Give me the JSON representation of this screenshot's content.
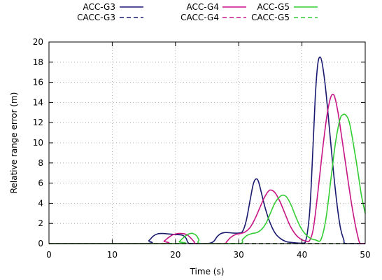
{
  "chart_data": {
    "type": "line",
    "xlabel": "Time (s)",
    "ylabel": "Relative range error (m)",
    "xlim": [
      0,
      50
    ],
    "ylim": [
      0,
      20
    ],
    "xticks": [
      0,
      10,
      20,
      30,
      40,
      50
    ],
    "yticks": [
      0,
      2,
      4,
      6,
      8,
      10,
      12,
      14,
      16,
      18,
      20
    ],
    "grid": true,
    "legend_position": "top",
    "series": [
      {
        "name": "ACC-G3",
        "color": "#191970",
        "dash": "solid",
        "x": [
          0,
          15,
          15.8,
          16.5,
          17.2,
          18,
          19,
          20,
          21,
          21.6,
          22,
          22.5,
          25,
          26,
          26.6,
          27.2,
          28,
          29,
          30,
          30.6,
          31.2,
          31.8,
          32.3,
          32.7,
          33.1,
          33.6,
          34.2,
          35,
          35.8,
          36.6,
          37.5,
          38.5,
          39.5,
          40.5,
          41.2,
          41.7,
          42.1,
          42.5,
          42.9,
          43.3,
          43.8,
          44.4,
          45,
          45.6,
          46.1,
          46.6,
          47,
          50
        ],
        "y": [
          0,
          0,
          0.3,
          0.75,
          0.97,
          1.0,
          0.95,
          0.9,
          0.85,
          0.6,
          0.1,
          0,
          0,
          0.2,
          0.7,
          1.0,
          1.1,
          1.05,
          1.05,
          1.2,
          2.3,
          4.3,
          5.9,
          6.4,
          6.2,
          5.0,
          3.5,
          2.0,
          1.0,
          0.5,
          0.2,
          0.1,
          0.05,
          0.1,
          3.0,
          9.0,
          14.5,
          17.8,
          18.5,
          17.5,
          15.0,
          11.0,
          7.0,
          3.6,
          1.5,
          0.4,
          0,
          0
        ]
      },
      {
        "name": "ACC-G4",
        "color": "#C71585",
        "dash": "solid",
        "x": [
          0,
          17.5,
          18.2,
          18.8,
          19.5,
          20,
          20.5,
          21,
          21.5,
          22,
          22.5,
          23,
          23.3,
          27.5,
          28.1,
          28.7,
          29.5,
          30.3,
          31,
          31.8,
          32.6,
          33.3,
          34,
          34.7,
          35.2,
          35.8,
          36.5,
          37.3,
          38.1,
          39,
          39.8,
          40.6,
          41.2,
          41.8,
          42.5,
          43.2,
          43.9,
          44.4,
          44.8,
          45.2,
          45.7,
          46.3,
          47,
          47.7,
          48.3,
          48.8,
          49.2,
          50
        ],
        "y": [
          0,
          0,
          0.25,
          0.55,
          0.85,
          0.95,
          1.0,
          1.0,
          0.95,
          0.8,
          0.5,
          0.15,
          0,
          0,
          0.2,
          0.6,
          0.9,
          1.0,
          1.15,
          1.6,
          2.5,
          3.5,
          4.5,
          5.2,
          5.3,
          5.0,
          4.2,
          3.0,
          1.8,
          0.9,
          0.45,
          0.25,
          0.3,
          1.5,
          5.0,
          9.0,
          12.5,
          14.2,
          14.8,
          14.5,
          13.0,
          10.5,
          7.5,
          4.5,
          2.3,
          0.8,
          0,
          0
        ]
      },
      {
        "name": "ACC-G5",
        "color": "#32CD32",
        "dash": "solid",
        "x": [
          0,
          20,
          20.6,
          21.2,
          21.8,
          22.3,
          22.8,
          23.3,
          23.7,
          24.1,
          30,
          30.6,
          31.3,
          32.1,
          32.9,
          33.6,
          34.3,
          35,
          35.7,
          36.4,
          37,
          37.6,
          38.3,
          39,
          39.8,
          40.6,
          41.4,
          42.2,
          43,
          43.8,
          44.6,
          45.3,
          46,
          46.5,
          47,
          47.5,
          48.1,
          48.8,
          49.4,
          50
        ],
        "y": [
          0,
          0,
          0.2,
          0.55,
          0.85,
          1.0,
          1.0,
          0.8,
          0.4,
          0,
          0,
          0.4,
          0.8,
          1.0,
          1.1,
          1.4,
          2.0,
          3.0,
          4.0,
          4.6,
          4.8,
          4.6,
          3.8,
          2.7,
          1.6,
          0.9,
          0.5,
          0.35,
          0.4,
          2.5,
          6.5,
          10.0,
          12.3,
          12.8,
          12.7,
          12.0,
          10.0,
          7.3,
          4.8,
          3.0
        ]
      },
      {
        "name": "CACC-G3",
        "color": "#191970",
        "dash": "dashed",
        "x": [
          0,
          50
        ],
        "y": [
          0,
          0
        ]
      },
      {
        "name": "CACC-G4",
        "color": "#C71585",
        "dash": "dashed",
        "x": [
          0,
          50
        ],
        "y": [
          0,
          0
        ]
      },
      {
        "name": "CACC-G5",
        "color": "#32CD32",
        "dash": "dashed",
        "x": [
          0,
          50
        ],
        "y": [
          0,
          0
        ]
      }
    ]
  }
}
